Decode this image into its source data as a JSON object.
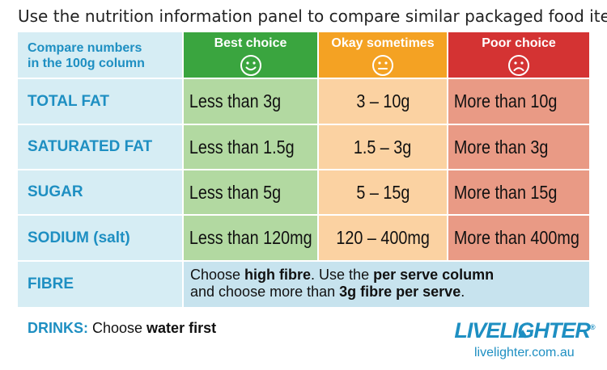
{
  "title": "Use the nutrition information panel to compare similar packaged food items",
  "header": {
    "compare_line1": "Compare numbers",
    "compare_line2": "in the 100g column",
    "best": "Best choice",
    "okay": "Okay sometimes",
    "poor": "Poor choice"
  },
  "colors": {
    "best": "#3aa53f",
    "okay": "#f4a223",
    "poor": "#d43333",
    "brand_blue": "#1e8fc2"
  },
  "rows": [
    {
      "label": "TOTAL FAT",
      "best": "Less than 3g",
      "okay": "3 – 10g",
      "poor": "More than 10g"
    },
    {
      "label": "SATURATED FAT",
      "best": "Less than 1.5g",
      "okay": "1.5 – 3g",
      "poor": "More than 3g"
    },
    {
      "label": "SUGAR",
      "best": "Less than 5g",
      "okay": "5 – 15g",
      "poor": "More than 15g"
    },
    {
      "label": "SODIUM (salt)",
      "best": "Less than 120mg",
      "okay": "120 – 400mg",
      "poor": "More than 400mg"
    }
  ],
  "fibre": {
    "label": "FIBRE",
    "t1": "Choose ",
    "b1": "high fibre",
    "t2": ". Use the ",
    "b2": "per serve column",
    "t3": "and choose more than ",
    "b3": "3g fibre per serve",
    "t4": "."
  },
  "drinks": {
    "label": "DRINKS:",
    "text": " Choose ",
    "bold": "water first"
  },
  "logo": {
    "live": "LIVE",
    "lighter": "LIGHTER",
    "registered": "®"
  },
  "url": "livelighter.com.au"
}
